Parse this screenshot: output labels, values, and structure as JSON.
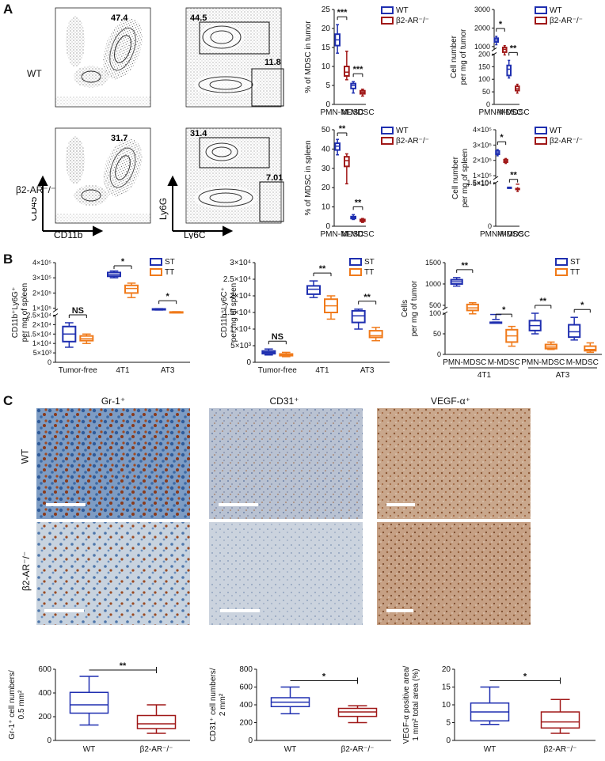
{
  "panel_labels": {
    "a": "A",
    "b": "B",
    "c": "C"
  },
  "flow": {
    "row_labels": [
      "WT",
      "β2-AR⁻/⁻"
    ],
    "axes": {
      "cd45": "CD45",
      "cd11b": "CD11b",
      "ly6g": "Ly6G",
      "ly6c": "Ly6C"
    },
    "gates": {
      "wt_cd11b": "47.4",
      "wt_ly6g": "44.5",
      "wt_ly6c": "11.8",
      "ko_cd11b": "31.7",
      "ko_ly6g": "31.4",
      "ko_ly6c": "7.01"
    }
  },
  "histology": {
    "columns": [
      "Gr-1⁺",
      "CD31⁺",
      "VEGF-α⁺"
    ],
    "rows": [
      "WT",
      "β2-AR⁻/⁻"
    ]
  },
  "colors": {
    "blue": "#1f2fb0",
    "red": "#a01818",
    "orange": "#f07a1a"
  },
  "chart_data": [
    {
      "type": "box",
      "id": "A1",
      "ylabel": "% of MDSC in tumor",
      "categories": [
        "PMN-MDSC",
        "M-MDSC"
      ],
      "legend": [
        "WT",
        "β2-AR⁻/⁻"
      ],
      "ylim": [
        0,
        25
      ],
      "yticks": [
        0,
        5,
        10,
        15,
        20,
        25
      ],
      "series": [
        {
          "name": "WT",
          "boxes": [
            [
              13.5,
              15.5,
              17,
              18.5,
              21
            ],
            [
              3,
              4.2,
              5,
              5.5,
              6
            ]
          ]
        },
        {
          "name": "β2-AR⁻/⁻",
          "boxes": [
            [
              6.5,
              7.5,
              8.5,
              10,
              14
            ],
            [
              2.2,
              2.8,
              3.2,
              3.6,
              4
            ]
          ]
        }
      ],
      "significance": [
        "***",
        "***"
      ]
    },
    {
      "type": "box",
      "id": "A2",
      "ylabel": "Cell number per mg of tumor",
      "categories": [
        "PMN-MDSC",
        "M-MDSC"
      ],
      "legend": [
        "WT",
        "β2-AR⁻/⁻"
      ],
      "axis_break": true,
      "upper_ticks": [
        1000,
        2000,
        3000
      ],
      "lower_ticks": [
        0,
        50,
        100,
        150,
        200
      ],
      "series": [
        {
          "name": "WT",
          "boxes": [
            [
              1100,
              1250,
              1350,
              1450,
              1550
            ],
            [
              105,
              115,
              140,
              155,
              175
            ]
          ]
        },
        {
          "name": "β2-AR⁻/⁻",
          "boxes": [
            [
              550,
              700,
              850,
              950,
              1050
            ],
            [
              45,
              55,
              62,
              72,
              80
            ]
          ]
        }
      ],
      "significance": [
        "*",
        "**"
      ]
    },
    {
      "type": "box",
      "id": "A3",
      "ylabel": "% of MDSC in spleen",
      "categories": [
        "PMN-MDSC",
        "M-MDSC"
      ],
      "legend": [
        "WT",
        "β2-AR⁻/⁻"
      ],
      "ylim": [
        0,
        50
      ],
      "yticks": [
        0,
        10,
        20,
        30,
        40,
        50
      ],
      "series": [
        {
          "name": "WT",
          "boxes": [
            [
              37,
              39.5,
              41.5,
              43,
              45
            ],
            [
              3.5,
              4,
              4.5,
              5,
              6
            ]
          ]
        },
        {
          "name": "β2-AR⁻/⁻",
          "boxes": [
            [
              22,
              31,
              34,
              36,
              37.5
            ],
            [
              2,
              2.6,
              3,
              3.5,
              4
            ]
          ]
        }
      ],
      "significance": [
        "**",
        "**"
      ]
    },
    {
      "type": "box",
      "id": "A4",
      "ylabel": "Cell number per mg of spleen",
      "categories": [
        "PMN-MDSC",
        "M-MDSC"
      ],
      "legend": [
        "WT",
        "β2-AR⁻/⁻"
      ],
      "axis_break": true,
      "upper_ticks": [
        "1×10⁵",
        "2×10⁵",
        "3×10⁵",
        "4×10⁵"
      ],
      "lower_ticks": [
        "0",
        "5×10⁴",
        "1.5×10⁴"
      ],
      "series": [
        {
          "name": "WT",
          "boxes": [
            [
              230000,
              240000,
              250000,
              262000,
              270000
            ],
            [
              20000,
              21000,
              22000,
              23500,
              24500
            ]
          ]
        },
        {
          "name": "β2-AR⁻/⁻",
          "boxes": [
            [
              180000,
              188000,
              196000,
              205000,
              212000
            ],
            [
              12000,
              13500,
              14500,
              15500,
              17000
            ]
          ]
        }
      ],
      "significance": [
        "*",
        "**"
      ]
    },
    {
      "type": "box",
      "id": "B1",
      "ylabel": "CD11b⁺Ly6G⁺ per mg of spleen",
      "categories": [
        "Tumor-free",
        "4T1",
        "AT3"
      ],
      "legend": [
        "ST",
        "TT"
      ],
      "axis_break": true,
      "upper_ticks": [
        "1×10⁵",
        "2×10⁵",
        "3×10⁵",
        "4×10⁵"
      ],
      "lower_ticks": [
        "0",
        "5×10³",
        "1×10⁴",
        "1.5×10⁴",
        "2×10⁴",
        "2.5×10⁴"
      ],
      "series": [
        {
          "name": "ST",
          "boxes": [
            [
              8000,
              11000,
              15000,
              19000,
              21000
            ],
            [
              300000,
              310000,
              320000,
              335000,
              345000
            ],
            [
              88000,
              90000,
              92000,
              95000,
              97000
            ]
          ]
        },
        {
          "name": "TT",
          "boxes": [
            [
              10000,
              11500,
              12500,
              14000,
              15000
            ],
            [
              170000,
              200000,
              230000,
              250000,
              265000
            ],
            [
              70000,
              72000,
              74000,
              75000,
              77000
            ]
          ]
        }
      ],
      "significance": [
        "NS",
        "*",
        "*"
      ]
    },
    {
      "type": "box",
      "id": "B2",
      "ylabel": "CD11b⁺Ly6C⁺ per mg of spleen",
      "categories": [
        "Tumor-free",
        "4T1",
        "AT3"
      ],
      "legend": [
        "ST",
        "TT"
      ],
      "ylim": [
        0,
        30000
      ],
      "yticks": [
        "0",
        "5×10³",
        "1×10⁴",
        "1.5×10⁴",
        "2×10⁴",
        "2.5×10⁴",
        "3×10⁴"
      ],
      "series": [
        {
          "name": "ST",
          "boxes": [
            [
              2200,
              2600,
              3000,
              3400,
              4000
            ],
            [
              19500,
              20500,
              22000,
              23000,
              24500
            ],
            [
              10000,
              12000,
              14000,
              15500,
              16000
            ]
          ]
        },
        {
          "name": "TT",
          "boxes": [
            [
              1700,
              2000,
              2200,
              2500,
              3000
            ],
            [
              13000,
              15000,
              17000,
              19000,
              20000
            ],
            [
              6500,
              7500,
              8000,
              9500,
              10500
            ]
          ]
        }
      ],
      "significance": [
        "NS",
        "**",
        "**"
      ]
    },
    {
      "type": "box",
      "id": "B3",
      "ylabel": "Cells per mg of tumor",
      "categories": [
        "PMN-MDSC",
        "M-MDSC",
        "PMN-MDSC",
        "M-MDSC"
      ],
      "groups": [
        "4T1",
        "AT3"
      ],
      "legend": [
        "ST",
        "TT"
      ],
      "axis_break": true,
      "upper_ticks": [
        500,
        1000,
        1500
      ],
      "lower_ticks": [
        0,
        50,
        100
      ],
      "series": [
        {
          "name": "ST",
          "boxes": [
            [
              950,
              1000,
              1050,
              1100,
              1150
            ],
            [
              85,
              92,
              97,
              102,
              108
            ],
            [
              50,
              58,
              70,
              82,
              100
            ],
            [
              35,
              42,
              55,
              72,
              90
            ]
          ]
        },
        {
          "name": "TT",
          "boxes": [
            [
              300,
              380,
              440,
              520,
              560
            ],
            [
              20,
              30,
              45,
              60,
              68
            ],
            [
              12,
              14,
              18,
              24,
              30
            ],
            [
              5,
              9,
              12,
              20,
              28
            ]
          ]
        }
      ],
      "significance": [
        "**",
        "*",
        "**",
        "*"
      ]
    },
    {
      "type": "box",
      "id": "C1",
      "ylabel": "Gr-1⁺ cell numbers/ 0.5 mm²",
      "categories": [
        "WT",
        "β2-AR⁻/⁻"
      ],
      "ylim": [
        0,
        600
      ],
      "yticks": [
        0,
        200,
        400,
        600
      ],
      "series": [
        {
          "name": "WT",
          "boxes": [
            [
              130,
              230,
              300,
              405,
              540
            ]
          ]
        },
        {
          "name": "β2-AR⁻/⁻",
          "boxes": [
            [
              60,
              100,
              140,
              210,
              300
            ]
          ]
        }
      ],
      "significance": [
        "**"
      ]
    },
    {
      "type": "box",
      "id": "C2",
      "ylabel": "CD31⁺ cell numbers/ 2 mm²",
      "categories": [
        "WT",
        "β2-AR⁻/⁻"
      ],
      "ylim": [
        0,
        800
      ],
      "yticks": [
        0,
        200,
        400,
        600,
        800
      ],
      "series": [
        {
          "name": "WT",
          "boxes": [
            [
              300,
              380,
              430,
              480,
              600
            ]
          ]
        },
        {
          "name": "β2-AR⁻/⁻",
          "boxes": [
            [
              200,
              270,
              320,
              360,
              390
            ]
          ]
        }
      ],
      "significance": [
        "*"
      ]
    },
    {
      "type": "box",
      "id": "C3",
      "ylabel": "VEGF-α positive area/ 1 mm² total area (%)",
      "categories": [
        "WT",
        "β2-AR⁻/⁻"
      ],
      "ylim": [
        0,
        20
      ],
      "yticks": [
        0,
        5,
        10,
        15,
        20
      ],
      "series": [
        {
          "name": "WT",
          "boxes": [
            [
              4.5,
              5.5,
              8,
              10.5,
              15
            ]
          ]
        },
        {
          "name": "β2-AR⁻/⁻",
          "boxes": [
            [
              2,
              3.5,
              5.2,
              8,
              11.5
            ]
          ]
        }
      ],
      "significance": [
        "*"
      ]
    }
  ]
}
